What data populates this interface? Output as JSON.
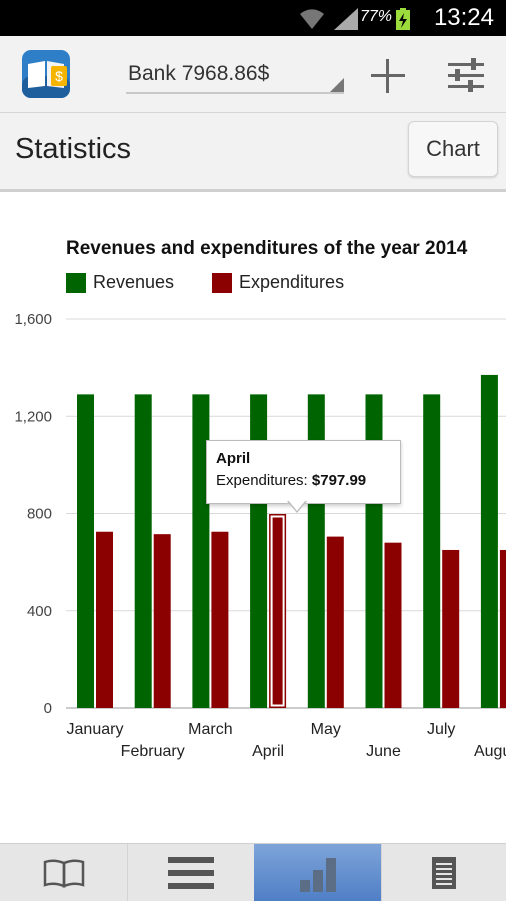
{
  "status_bar": {
    "battery_percent": "77%",
    "time": "13:24"
  },
  "action_bar": {
    "account_selector": "Bank 7968.86$",
    "icons": [
      "app-logo-icon",
      "add-icon",
      "settings-sliders-icon"
    ]
  },
  "title_bar": {
    "title": "Statistics",
    "chart_button": "Chart"
  },
  "chart_data": {
    "type": "bar",
    "title": "Revenues and expenditures of the year 2014",
    "categories": [
      "January",
      "February",
      "March",
      "April",
      "May",
      "June",
      "July",
      "August"
    ],
    "series": [
      {
        "name": "Revenues",
        "color": "#006400",
        "values": [
          1290,
          1290,
          1290,
          1290,
          1290,
          1290,
          1290,
          1370
        ]
      },
      {
        "name": "Expenditures",
        "color": "#8b0000",
        "values": [
          725,
          715,
          725,
          797.99,
          705,
          680,
          650,
          650
        ]
      }
    ],
    "yticks": [
      "0",
      "400",
      "800",
      "1,200",
      "1,600"
    ],
    "ytick_values": [
      0,
      400,
      800,
      1200,
      1600
    ],
    "ylim": [
      0,
      1600
    ],
    "grid": true,
    "legend": "top-left",
    "highlighted": {
      "category_index": 3,
      "series_index": 1
    }
  },
  "tooltip": {
    "title": "April",
    "label": "Expenditures:",
    "value": "$797.99"
  },
  "bottom_nav": {
    "items": [
      {
        "name": "transactions",
        "icon": "book-icon",
        "active": false
      },
      {
        "name": "list",
        "icon": "list-icon",
        "active": false
      },
      {
        "name": "statistics",
        "icon": "bar-chart-icon",
        "active": true
      },
      {
        "name": "reports",
        "icon": "document-icon",
        "active": false
      }
    ]
  }
}
